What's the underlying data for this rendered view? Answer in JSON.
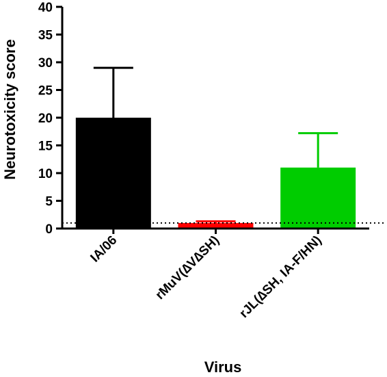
{
  "chart_data": {
    "type": "bar",
    "xlabel": "Virus",
    "ylabel": "Neurotoxicity score",
    "ylim": [
      0,
      40
    ],
    "yticks": [
      0,
      5,
      10,
      15,
      20,
      25,
      30,
      35,
      40
    ],
    "categories": [
      "IA/06",
      "rMuV(∆V∆SH)",
      "rJL(∆SH, IA-F/HN)"
    ],
    "values": [
      20,
      1,
      11
    ],
    "error_upper": [
      29,
      1.3,
      17.2
    ],
    "colors": [
      "#000000",
      "#ff0000",
      "#00cc00"
    ],
    "reference_line": {
      "value": 1,
      "style": "dotted"
    },
    "grid": false,
    "legend": "none"
  }
}
